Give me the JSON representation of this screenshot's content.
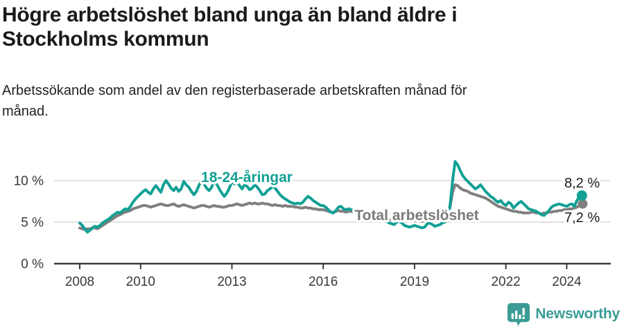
{
  "header": {
    "title_lines": [
      "Högre arbetslöshet bland unga än bland äldre i",
      "Stockholms kommun"
    ],
    "subtitle_lines": [
      "Arbetssökande som andel av den registerbaserade arbetskraften månad för",
      "månad."
    ]
  },
  "footer": {
    "brand": "Newsworthy"
  },
  "colors": {
    "youth_line": "#12a095",
    "total_line": "#7f7f7f",
    "total_label": "#7a7a7a",
    "axis": "#3a3a3a",
    "gridline": "#d9d9d9",
    "end_label_text": "#1a1a1a",
    "brand_teal": "#3b9c95"
  },
  "chart_data": {
    "type": "line",
    "unit": "%",
    "grid": "horizontal",
    "legend_position": "inline-labels",
    "x_start": {
      "year": 2008,
      "month": 1
    },
    "x_step": "month",
    "x_end": {
      "year": 2024,
      "month": 7
    },
    "ylim": [
      0,
      13
    ],
    "y_ticks": [
      {
        "label": "0 %",
        "value": 0
      },
      {
        "label": "5 %",
        "value": 5
      },
      {
        "label": "10 %",
        "value": 10
      }
    ],
    "x_ticks": [
      {
        "label": "2008",
        "year": 2008
      },
      {
        "label": "2010",
        "year": 2010
      },
      {
        "label": "2013",
        "year": 2013
      },
      {
        "label": "2016",
        "year": 2016
      },
      {
        "label": "2019",
        "year": 2019
      },
      {
        "label": "2022",
        "year": 2022
      },
      {
        "label": "2024",
        "year": 2024
      }
    ],
    "series": [
      {
        "name": "18-24-åringar",
        "color": "#12a095",
        "end_value": 8.2,
        "end_label": "8,2 %",
        "values": [
          4.9,
          4.6,
          4.2,
          3.8,
          4.0,
          4.3,
          4.5,
          4.4,
          4.6,
          4.9,
          5.1,
          5.3,
          5.5,
          5.8,
          6.0,
          6.2,
          6.1,
          6.4,
          6.6,
          6.5,
          6.9,
          7.4,
          7.8,
          8.1,
          8.4,
          8.7,
          8.9,
          8.6,
          8.4,
          9.0,
          9.4,
          9.0,
          8.6,
          9.5,
          10.0,
          9.6,
          9.1,
          8.8,
          9.2,
          8.7,
          9.0,
          9.9,
          9.5,
          9.2,
          8.7,
          8.3,
          8.7,
          9.4,
          10.0,
          9.6,
          9.1,
          8.8,
          9.2,
          9.9,
          9.6,
          9.0,
          8.5,
          8.1,
          8.5,
          9.1,
          9.9,
          9.6,
          9.8,
          9.4,
          9.0,
          9.5,
          9.3,
          8.9,
          9.1,
          9.5,
          9.2,
          8.8,
          8.3,
          8.4,
          8.8,
          9.0,
          9.3,
          9.1,
          8.7,
          8.3,
          8.0,
          7.8,
          7.6,
          7.4,
          7.3,
          7.2,
          7.3,
          7.2,
          7.4,
          7.8,
          8.1,
          7.9,
          7.6,
          7.4,
          7.2,
          7.0,
          7.0,
          6.8,
          6.5,
          6.2,
          6.1,
          6.4,
          6.8,
          6.9,
          6.6,
          6.5,
          6.6,
          6.5,
          6.4,
          6.3,
          6.1,
          6.0,
          5.9,
          6.1,
          6.2,
          6.0,
          5.7,
          5.5,
          5.4,
          5.3,
          5.2,
          5.1,
          4.9,
          4.8,
          4.7,
          5.0,
          5.1,
          4.9,
          4.6,
          4.5,
          4.4,
          4.5,
          4.6,
          4.5,
          4.4,
          4.3,
          4.4,
          4.8,
          4.9,
          4.7,
          4.5,
          4.6,
          4.7,
          4.9,
          5.0,
          5.4,
          7.0,
          10.0,
          12.3,
          11.9,
          11.2,
          10.6,
          10.2,
          9.9,
          9.6,
          9.3,
          9.0,
          9.2,
          9.5,
          9.1,
          8.7,
          8.4,
          8.1,
          7.9,
          7.6,
          7.4,
          7.6,
          7.2,
          7.0,
          7.4,
          7.2,
          6.7,
          7.0,
          7.3,
          7.5,
          7.2,
          6.9,
          6.6,
          6.5,
          6.4,
          6.3,
          6.1,
          5.9,
          5.8,
          6.1,
          6.4,
          6.8,
          7.0,
          7.1,
          7.2,
          7.1,
          7.0,
          6.9,
          7.1,
          7.2,
          6.9,
          7.6,
          8.0,
          8.2
        ]
      },
      {
        "name": "Total arbetslöshet",
        "color": "#7f7f7f",
        "end_value": 7.2,
        "end_label": "7,2 %",
        "values": [
          4.3,
          4.2,
          4.1,
          4.2,
          4.2,
          4.3,
          4.3,
          4.2,
          4.4,
          4.6,
          4.8,
          5.0,
          5.2,
          5.4,
          5.6,
          5.8,
          5.9,
          6.1,
          6.2,
          6.3,
          6.4,
          6.6,
          6.7,
          6.8,
          6.9,
          7.0,
          7.0,
          6.9,
          6.8,
          6.9,
          7.0,
          7.1,
          7.2,
          7.1,
          7.0,
          7.0,
          7.1,
          7.2,
          7.0,
          6.9,
          7.0,
          7.1,
          7.0,
          6.9,
          6.8,
          6.7,
          6.8,
          6.9,
          7.0,
          7.0,
          6.9,
          6.8,
          6.9,
          7.0,
          6.9,
          6.9,
          6.8,
          6.8,
          6.9,
          7.0,
          7.0,
          7.1,
          7.2,
          7.1,
          7.0,
          7.1,
          7.2,
          7.3,
          7.2,
          7.3,
          7.2,
          7.2,
          7.3,
          7.2,
          7.2,
          7.1,
          7.0,
          7.1,
          7.0,
          7.0,
          6.9,
          7.0,
          6.9,
          6.9,
          6.9,
          6.8,
          6.8,
          6.7,
          6.7,
          6.8,
          6.7,
          6.7,
          6.6,
          6.6,
          6.5,
          6.5,
          6.5,
          6.4,
          6.3,
          6.2,
          6.2,
          6.3,
          6.4,
          6.3,
          6.3,
          6.2,
          6.3,
          6.3,
          6.2,
          6.1,
          6.0,
          5.9,
          5.9,
          6.0,
          6.0,
          5.9,
          5.8,
          5.7,
          5.6,
          5.6,
          5.5,
          5.4,
          5.3,
          5.3,
          5.2,
          5.3,
          5.3,
          5.2,
          5.2,
          5.1,
          5.2,
          5.2,
          5.2,
          5.2,
          5.1,
          5.1,
          5.2,
          5.3,
          5.4,
          5.3,
          5.3,
          5.4,
          5.4,
          5.5,
          5.6,
          5.8,
          6.8,
          8.6,
          9.5,
          9.4,
          9.1,
          8.9,
          8.8,
          8.7,
          8.5,
          8.4,
          8.3,
          8.2,
          8.1,
          8.0,
          7.9,
          7.7,
          7.5,
          7.3,
          7.1,
          6.9,
          6.8,
          6.7,
          6.6,
          6.5,
          6.4,
          6.3,
          6.3,
          6.2,
          6.2,
          6.1,
          6.1,
          6.1,
          6.2,
          6.2,
          6.1,
          6.1,
          6.0,
          6.1,
          6.1,
          6.2,
          6.2,
          6.3,
          6.3,
          6.4,
          6.4,
          6.5,
          6.5,
          6.6,
          6.6,
          6.7,
          6.8,
          7.0,
          7.2
        ]
      }
    ]
  }
}
